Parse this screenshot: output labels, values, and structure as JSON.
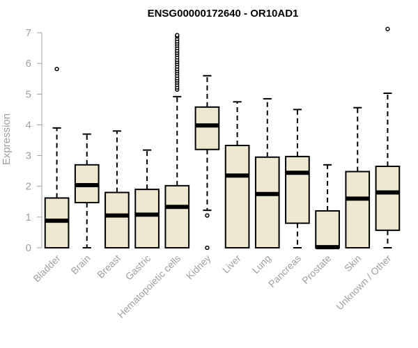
{
  "chart_data": {
    "type": "boxplot",
    "title": "ENSG00000172640 - OR10AD1",
    "xlabel": "",
    "ylabel": "Expression",
    "ylim": [
      0,
      7
    ],
    "yticks": [
      0,
      1,
      2,
      3,
      4,
      5,
      6,
      7
    ],
    "grid": false,
    "legend": "none",
    "colors": {
      "box_fill": "#EEE8D0",
      "box_stroke": "#000000",
      "median": "#000000",
      "axis": "#a0a0a0"
    },
    "categories": [
      "Bladder",
      "Brain",
      "Breast",
      "Gastric",
      "Hematopoietic cells",
      "Kidney",
      "Liver",
      "Lung",
      "Pancreas",
      "Prostate",
      "Skin",
      "Unknown / Other"
    ],
    "boxes": [
      {
        "category": "Bladder",
        "min": 0,
        "q1": 0,
        "median": 0.88,
        "q3": 1.62,
        "max": 3.9,
        "outliers": [
          5.82
        ]
      },
      {
        "category": "Brain",
        "min": 0,
        "q1": 1.47,
        "median": 2.04,
        "q3": 2.7,
        "max": 3.7,
        "outliers": []
      },
      {
        "category": "Breast",
        "min": 0,
        "q1": 0,
        "median": 1.05,
        "q3": 1.8,
        "max": 3.8,
        "outliers": []
      },
      {
        "category": "Gastric",
        "min": 0,
        "q1": 0,
        "median": 1.08,
        "q3": 1.9,
        "max": 3.18,
        "outliers": []
      },
      {
        "category": "Hematopoietic cells",
        "min": 0,
        "q1": 0,
        "median": 1.33,
        "q3": 2.02,
        "max": 4.92,
        "outliers": [
          5.15,
          5.22,
          5.3,
          5.38,
          5.45,
          5.52,
          5.6,
          5.68,
          5.75,
          5.82,
          5.9,
          5.98,
          6.05,
          6.12,
          6.2,
          6.28,
          6.35,
          6.42,
          6.5,
          6.58,
          6.65,
          6.72,
          6.8,
          6.88,
          6.92
        ]
      },
      {
        "category": "Kidney",
        "min": 1.22,
        "q1": 3.2,
        "median": 3.98,
        "q3": 4.58,
        "max": 5.6,
        "outliers": [
          1.05,
          0
        ]
      },
      {
        "category": "Liver",
        "min": 0,
        "q1": 0,
        "median": 2.35,
        "q3": 3.33,
        "max": 4.75,
        "outliers": []
      },
      {
        "category": "Lung",
        "min": 0,
        "q1": 0,
        "median": 1.75,
        "q3": 2.95,
        "max": 4.85,
        "outliers": []
      },
      {
        "category": "Pancreas",
        "min": 0,
        "q1": 0.8,
        "median": 2.44,
        "q3": 2.97,
        "max": 4.5,
        "outliers": []
      },
      {
        "category": "Prostate",
        "min": 0,
        "q1": 0,
        "median": 0.02,
        "q3": 1.2,
        "max": 2.7,
        "outliers": []
      },
      {
        "category": "Skin",
        "min": 0,
        "q1": 0,
        "median": 1.6,
        "q3": 2.48,
        "max": 4.56,
        "outliers": []
      },
      {
        "category": "Unknown / Other",
        "min": 0,
        "q1": 0.57,
        "median": 1.8,
        "q3": 2.65,
        "max": 5.03,
        "outliers": [
          7.12
        ]
      }
    ]
  }
}
